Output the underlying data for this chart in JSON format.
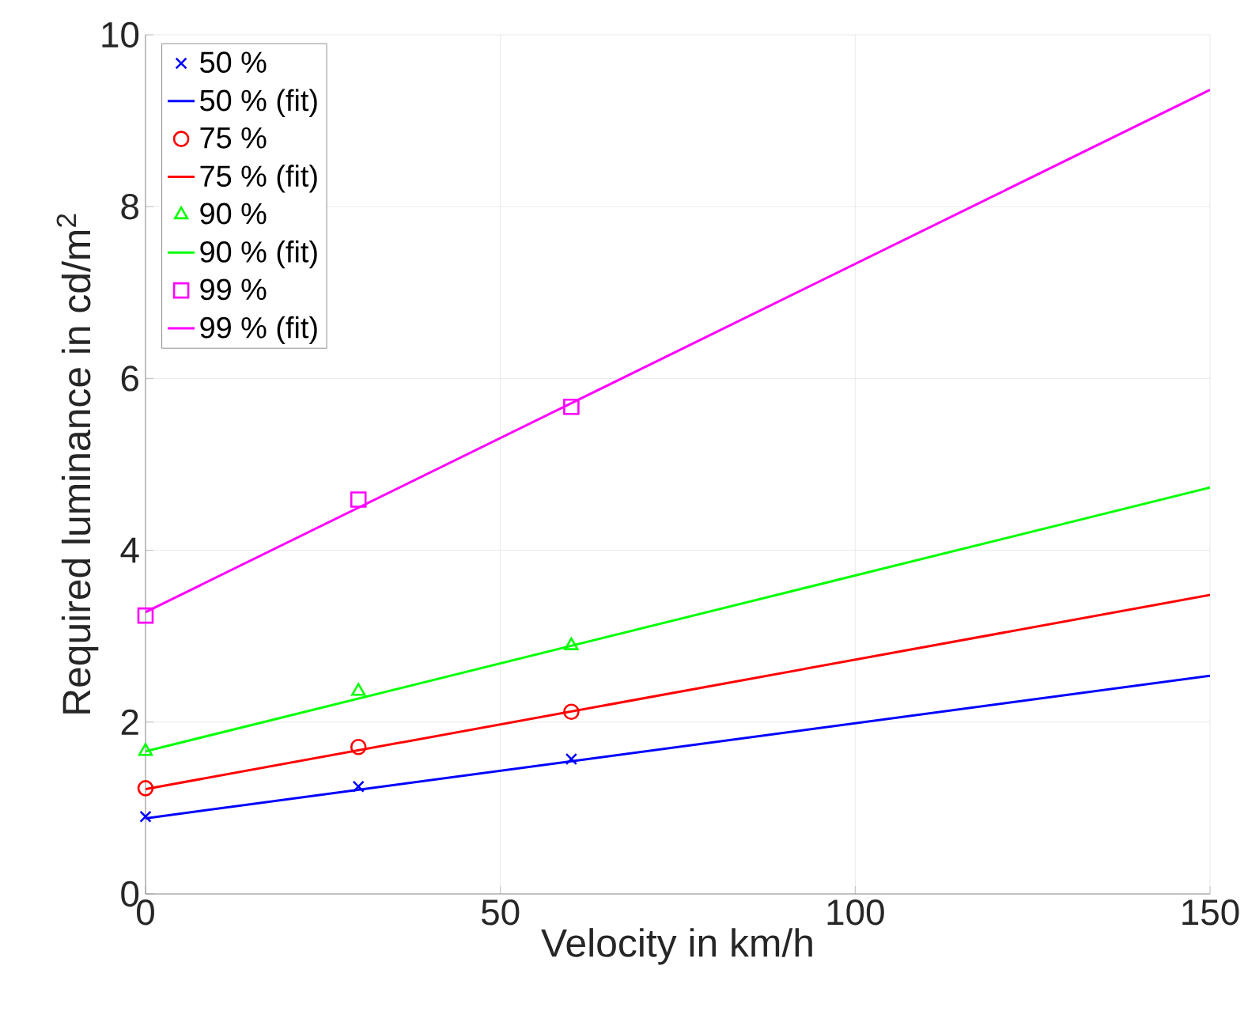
{
  "chart_data": {
    "type": "line",
    "xlabel": "Velocity in km/h",
    "ylabel": "Required luminance in cd/m$^{2}$",
    "xlim": [
      0,
      150
    ],
    "ylim": [
      0,
      10
    ],
    "xticks": [
      0,
      50,
      100,
      150
    ],
    "yticks": [
      0,
      2,
      4,
      6,
      8,
      10
    ],
    "grid": true,
    "legend": "top left",
    "series": [
      {
        "name": "50 %",
        "type": "scatter",
        "marker": "cross",
        "color": "#0000ff",
        "x": [
          0,
          30,
          60
        ],
        "values": [
          0.9,
          1.25,
          1.57
        ]
      },
      {
        "name": "50 % (fit)",
        "type": "line",
        "color": "#0000ff",
        "x": [
          0,
          150
        ],
        "values": [
          0.88,
          2.54
        ]
      },
      {
        "name": "75 %",
        "type": "scatter",
        "marker": "circle",
        "color": "#ff0000",
        "x": [
          0,
          30,
          60
        ],
        "values": [
          1.23,
          1.71,
          2.12
        ]
      },
      {
        "name": "75 % (fit)",
        "type": "line",
        "color": "#ff0000",
        "x": [
          0,
          150
        ],
        "values": [
          1.22,
          3.48
        ]
      },
      {
        "name": "90 %",
        "type": "scatter",
        "marker": "triangle",
        "color": "#00ff00",
        "x": [
          0,
          30,
          60
        ],
        "values": [
          1.66,
          2.36,
          2.89
        ]
      },
      {
        "name": "90 % (fit)",
        "type": "line",
        "color": "#00ff00",
        "x": [
          0,
          150
        ],
        "values": [
          1.66,
          4.73
        ]
      },
      {
        "name": "99 %",
        "type": "scatter",
        "marker": "square",
        "color": "#ff00ff",
        "x": [
          0,
          30,
          60
        ],
        "values": [
          3.24,
          4.59,
          5.67
        ]
      },
      {
        "name": "99 % (fit)",
        "type": "line",
        "color": "#ff00ff",
        "x": [
          0,
          150
        ],
        "values": [
          3.28,
          9.36
        ]
      }
    ]
  }
}
